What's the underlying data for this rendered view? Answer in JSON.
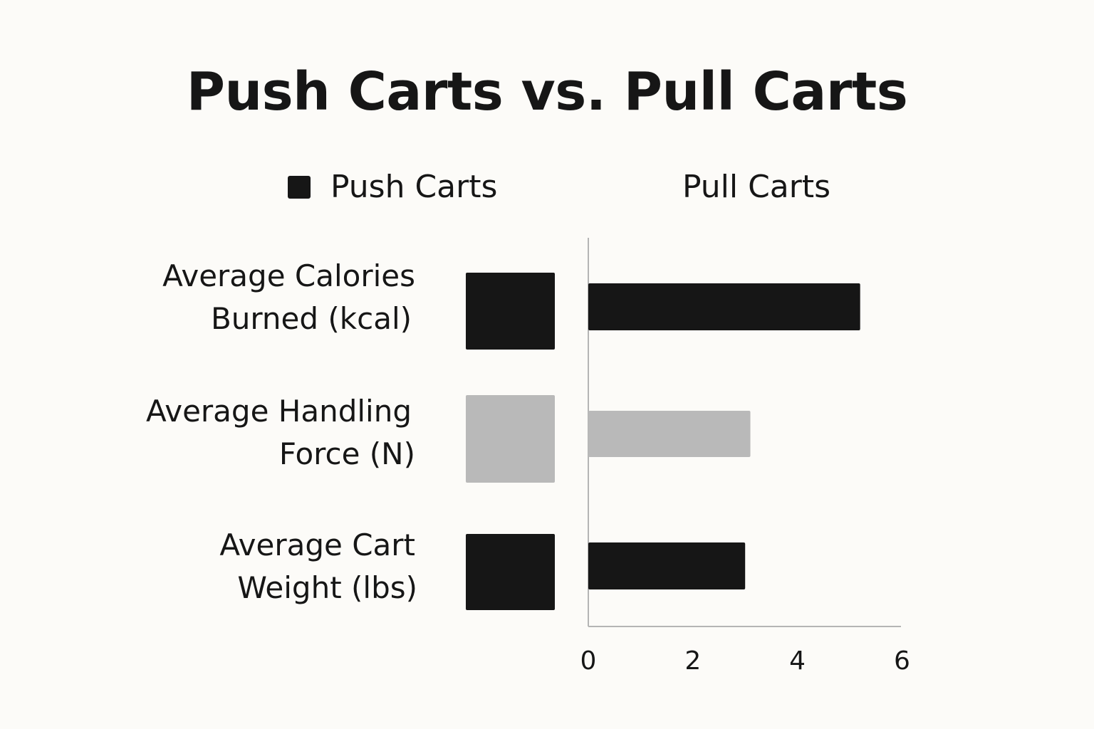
{
  "chart_data": {
    "type": "bar",
    "title": "Push Carts vs. Pull Carts",
    "categories": [
      "Average Calories Burned (kcal)",
      "Average Handling Force (N)",
      "Average Cart Weight (lbs)"
    ],
    "category_lines": [
      [
        "Average Calories",
        "Burned (kcal)"
      ],
      [
        "Average Handling",
        "Force (N)"
      ],
      [
        "Average Cart",
        "Weight (lbs)"
      ]
    ],
    "series": [
      {
        "name": "Push Carts",
        "values": [
          null,
          null,
          null
        ]
      },
      {
        "name": "Pull Carts",
        "values": [
          5.2,
          3.1,
          3.0
        ]
      }
    ],
    "bar_colors": [
      "#161616",
      "#b9b9b9",
      "#161616"
    ],
    "x_ticks": [
      0,
      2,
      4,
      6
    ],
    "xlim": [
      0,
      6
    ],
    "xlabel": "",
    "ylabel": "",
    "grid": false,
    "legend_position": "top"
  },
  "legend": {
    "push_label": "Push Carts",
    "pull_label": "Pull Carts",
    "push_color": "#161616"
  }
}
